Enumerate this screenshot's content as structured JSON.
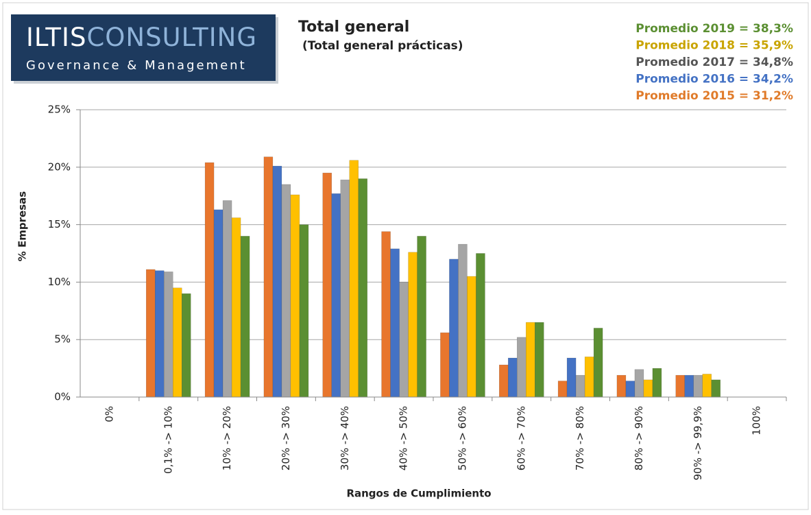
{
  "logo": {
    "brand_a": "ILTIS",
    "brand_b": "CONSULTING",
    "tagline": "Governance & Management"
  },
  "chart_data": {
    "type": "bar",
    "title": "Total general",
    "subtitle": "(Total general prácticas)",
    "y_label": "% Empresas",
    "x_label": "Rangos de Cumplimiento",
    "categories": [
      "0%",
      "0,1% -> 10%",
      "10% -> 20%",
      "20% -> 30%",
      "30% -> 40%",
      "40% -> 50%",
      "50% -> 60%",
      "60% -> 70%",
      "70% -> 80%",
      "80% -> 90%",
      "90% -> 99,9%",
      "100%"
    ],
    "series": [
      {
        "name": "Promedio 2015 = 31,2%",
        "color": "#e8762d",
        "values": [
          null,
          11.1,
          20.4,
          20.9,
          19.5,
          14.4,
          5.6,
          2.8,
          1.4,
          1.9,
          1.9,
          null
        ]
      },
      {
        "name": "Promedio 2016 = 34,2%",
        "color": "#4472c4",
        "values": [
          null,
          11.0,
          16.3,
          20.1,
          17.7,
          12.9,
          12.0,
          3.4,
          3.4,
          1.4,
          1.9,
          null
        ]
      },
      {
        "name": "Promedio 2017 = 34,8%",
        "color": "#a5a5a5",
        "values": [
          null,
          10.9,
          17.1,
          18.5,
          18.9,
          10.0,
          13.3,
          5.2,
          1.9,
          2.4,
          1.9,
          null
        ]
      },
      {
        "name": "Promedio 2018 = 35,9%",
        "color": "#ffc000",
        "values": [
          null,
          9.5,
          15.6,
          17.6,
          20.6,
          12.6,
          10.5,
          6.5,
          3.5,
          1.5,
          2.0,
          null
        ]
      },
      {
        "name": "Promedio 2019 = 38,3%",
        "color": "#5b8f32",
        "values": [
          null,
          9.0,
          14.0,
          15.0,
          19.0,
          14.0,
          12.5,
          6.5,
          6.0,
          2.5,
          1.5,
          null
        ]
      }
    ],
    "legend_colors": [
      "#e07b2a",
      "#4472c4",
      "#555555",
      "#c9a400",
      "#5b8f32"
    ],
    "ylim": [
      0,
      25
    ],
    "yticks": [
      {
        "value": 0,
        "label": "0%"
      },
      {
        "value": 5,
        "label": "5%"
      },
      {
        "value": 10,
        "label": "10%"
      },
      {
        "value": 15,
        "label": "15%"
      },
      {
        "value": 20,
        "label": "20%"
      },
      {
        "value": 25,
        "label": "25%"
      }
    ],
    "grid": true
  }
}
